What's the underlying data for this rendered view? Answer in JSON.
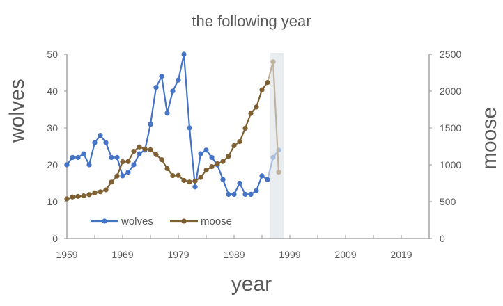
{
  "chart_data": {
    "type": "line",
    "title": "the following year",
    "xlabel": "year",
    "ylabel_left": "wolves",
    "ylabel_right": "moose",
    "xlim": [
      1959,
      2024
    ],
    "x_ticks": [
      1959,
      1969,
      1979,
      1989,
      1999,
      2009,
      2019
    ],
    "ylim_left": [
      0,
      50
    ],
    "y_ticks_left": [
      0,
      10,
      20,
      30,
      40,
      50
    ],
    "ylim_right": [
      0,
      2500
    ],
    "y_ticks_right": [
      0,
      500,
      1000,
      1500,
      2000,
      2500
    ],
    "grid": false,
    "legend_position": "bottom-left inside",
    "highlight_band": {
      "x_start": 1995.5,
      "x_end": 1997.9,
      "color": "#e9edf0"
    },
    "series": [
      {
        "name": "wolves",
        "axis": "left",
        "color": "#4472c4",
        "x": [
          1959,
          1960,
          1961,
          1962,
          1963,
          1964,
          1965,
          1966,
          1967,
          1968,
          1969,
          1970,
          1971,
          1972,
          1973,
          1974,
          1975,
          1976,
          1977,
          1978,
          1979,
          1980,
          1981,
          1982,
          1983,
          1984,
          1985,
          1986,
          1987,
          1988,
          1989,
          1990,
          1991,
          1992,
          1993,
          1994,
          1995,
          1996,
          1997
        ],
        "values": [
          20,
          22,
          22,
          23,
          20,
          26,
          28,
          26,
          22,
          22,
          17,
          18,
          20,
          23,
          24,
          31,
          41,
          44,
          34,
          40,
          43,
          50,
          30,
          14,
          23,
          24,
          22,
          20,
          16,
          12,
          12,
          15,
          12,
          12,
          13,
          17,
          16,
          22,
          24
        ],
        "faded_from_index": 37
      },
      {
        "name": "moose",
        "axis": "right",
        "color": "#7f6032",
        "x": [
          1959,
          1960,
          1961,
          1962,
          1963,
          1964,
          1965,
          1966,
          1967,
          1968,
          1969,
          1970,
          1971,
          1972,
          1973,
          1974,
          1975,
          1976,
          1977,
          1978,
          1979,
          1980,
          1981,
          1982,
          1983,
          1984,
          1985,
          1986,
          1987,
          1988,
          1989,
          1990,
          1991,
          1992,
          1993,
          1994,
          1995,
          1996,
          1997
        ],
        "values": [
          538,
          564,
          572,
          579,
          596,
          620,
          634,
          661,
          766,
          848,
          1041,
          1045,
          1183,
          1243,
          1215,
          1203,
          1139,
          1070,
          949,
          853,
          856,
          788,
          767,
          780,
          830,
          927,
          976,
          1014,
          1046,
          1116,
          1260,
          1315,
          1496,
          1697,
          1784,
          2017,
          2117,
          2398,
          900
        ],
        "faded_from_index": 37
      }
    ]
  },
  "labels": {
    "title": "the following year",
    "xlabel": "year",
    "ylabel_left": "wolves",
    "ylabel_right": "moose",
    "legend_wolves": "wolves",
    "legend_moose": "moose"
  }
}
